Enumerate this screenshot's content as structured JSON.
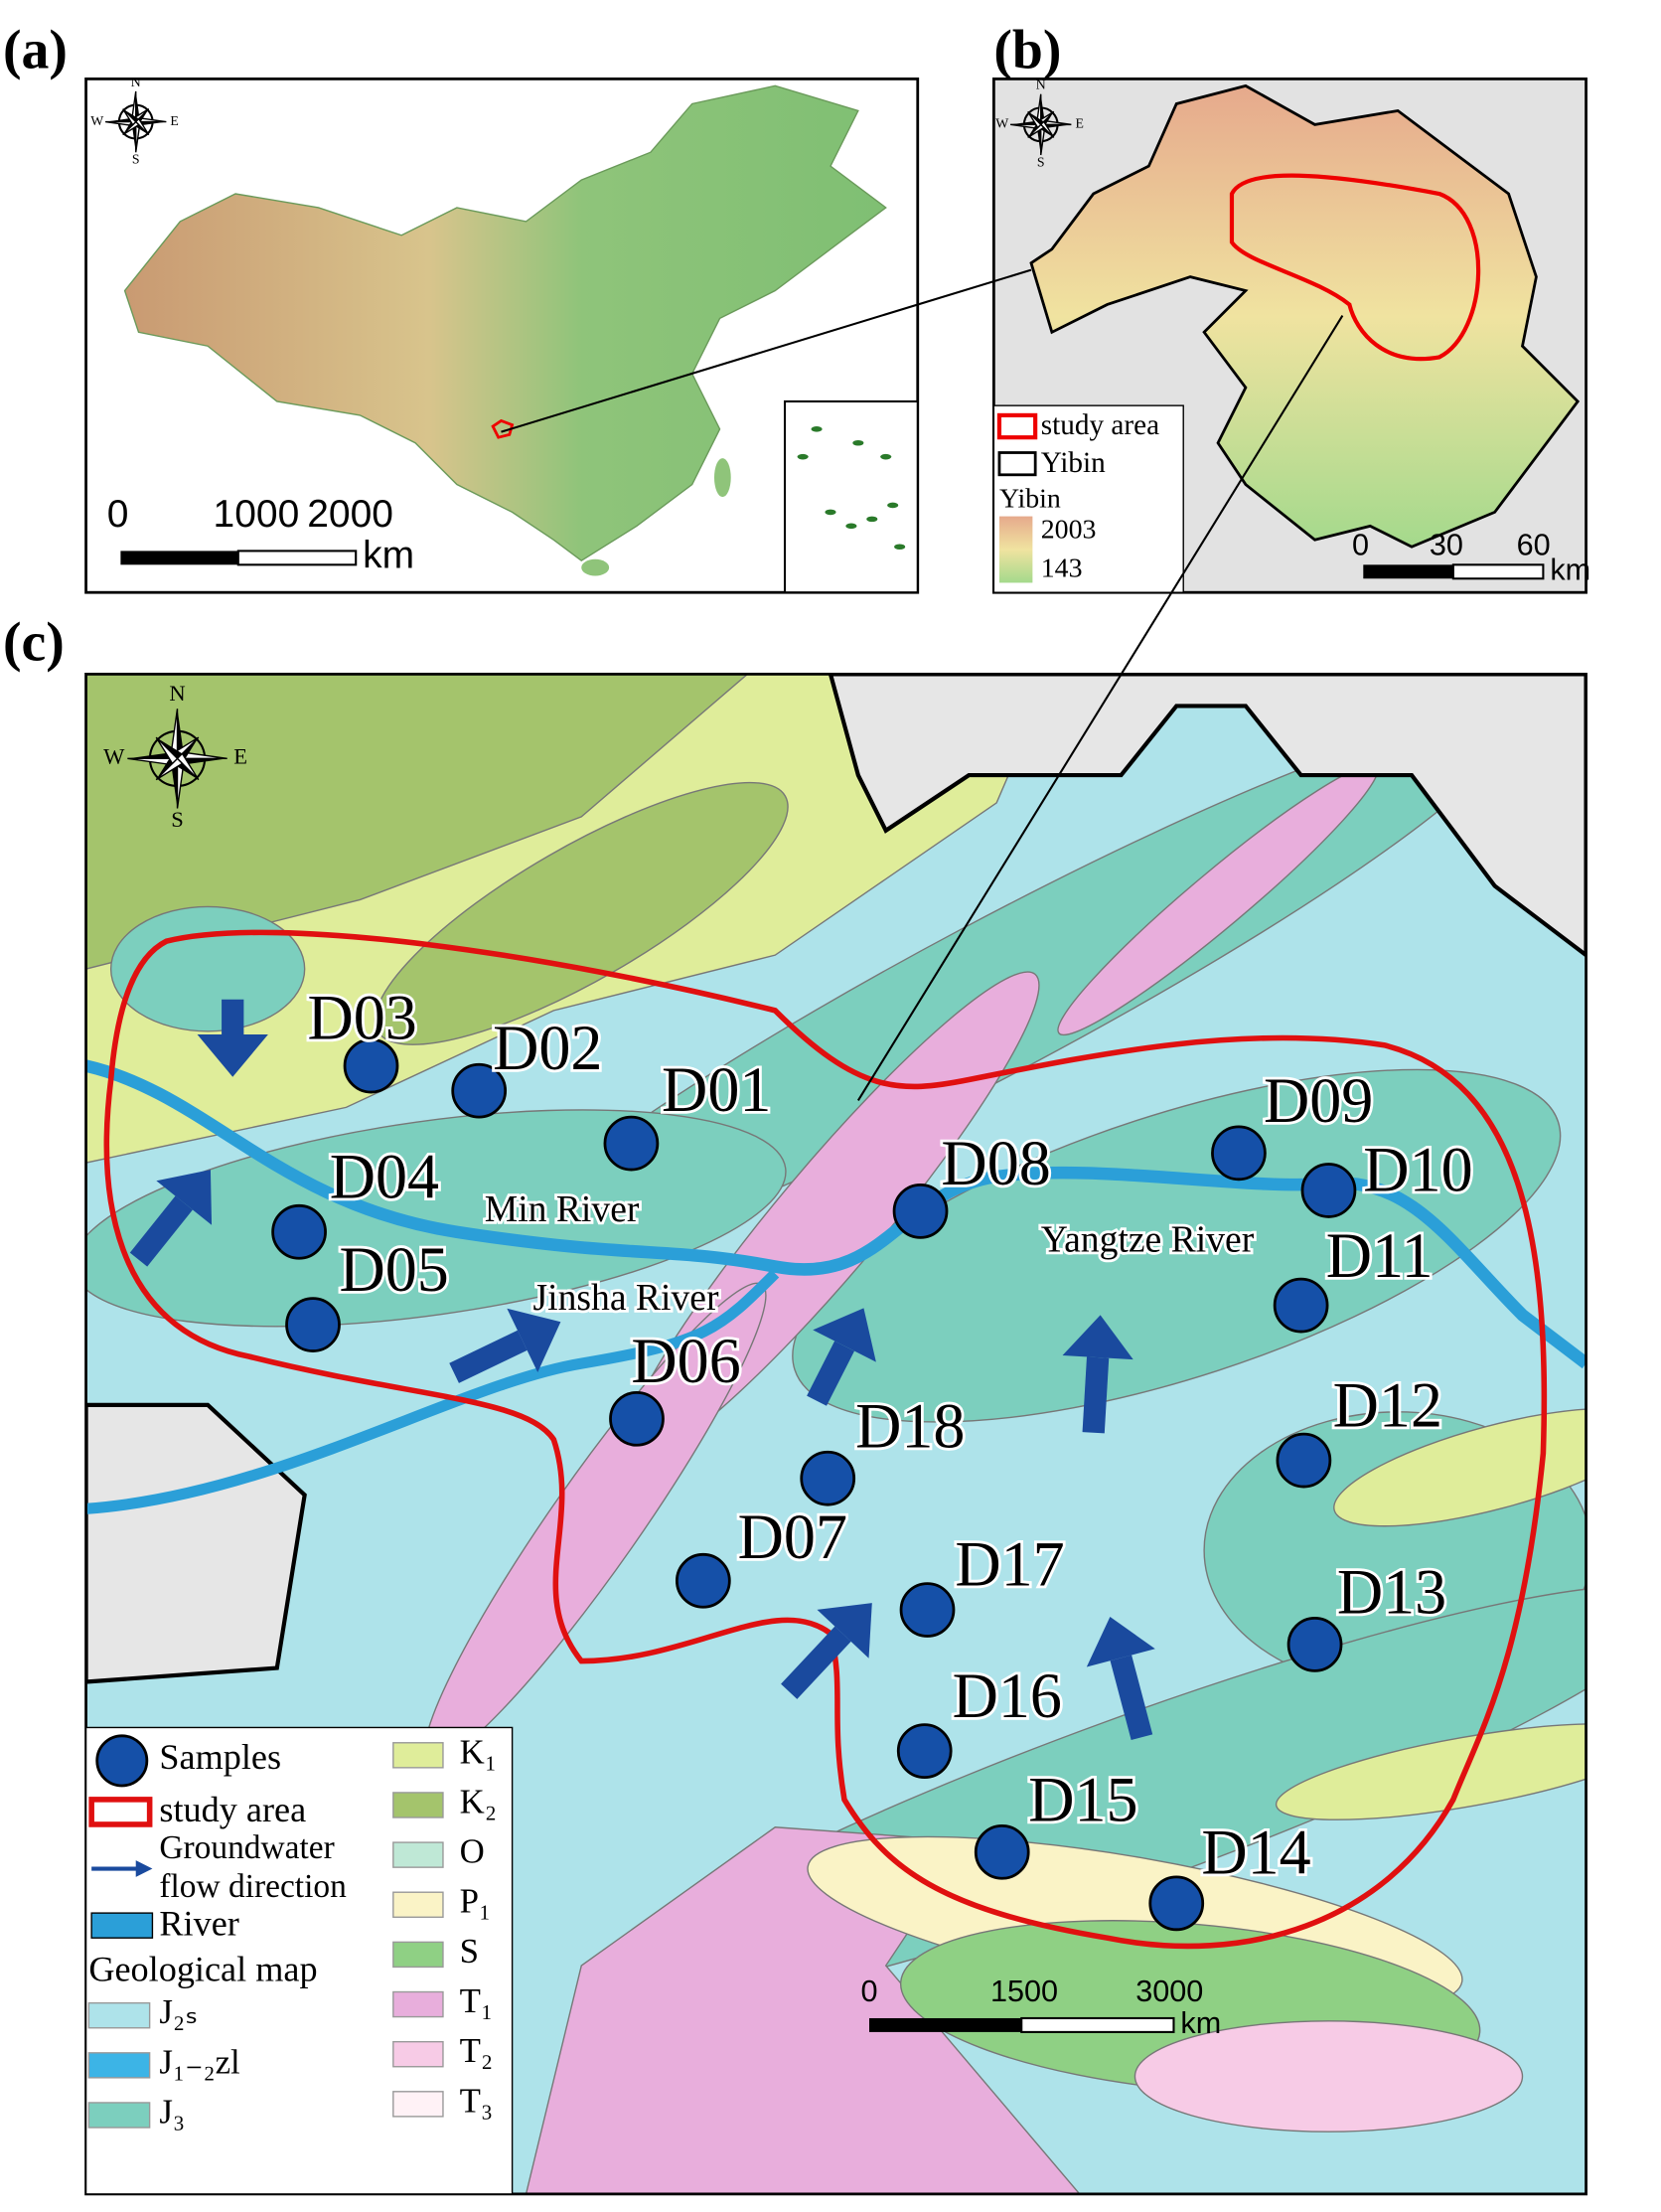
{
  "panel_a": {
    "label": "(a)",
    "compass": [
      "N",
      "E",
      "S",
      "W"
    ],
    "scale_labels": [
      0,
      1000,
      2000
    ],
    "scale_unit": "km"
  },
  "panel_b": {
    "label": "(b)",
    "compass": [
      "N",
      "E",
      "S",
      "W"
    ],
    "legend": [
      "study area",
      "Yibin"
    ],
    "elevation_title": "Yibin",
    "elevation_max": 2003,
    "elevation_min": 143,
    "scale_labels": [
      0,
      30,
      60
    ],
    "scale_unit": "km"
  },
  "panel_c": {
    "label": "(c)",
    "compass": [
      "N",
      "E",
      "S",
      "W"
    ],
    "samples": [
      "D01",
      "D02",
      "D03",
      "D04",
      "D05",
      "D06",
      "D07",
      "D08",
      "D09",
      "D10",
      "D11",
      "D12",
      "D13",
      "D14",
      "D15",
      "D16",
      "D17",
      "D18"
    ],
    "rivers": [
      "Min River",
      "Jinsha River",
      "Yangtze River"
    ],
    "legend": {
      "samples": "Samples",
      "study_area": "study area",
      "flow": [
        "Groundwater",
        "flow direction"
      ],
      "river": "River",
      "geology_title": "Geological map",
      "geology": [
        "J₂ₛ",
        "J₁₋₂zl",
        "J₃",
        "K₁",
        "K₂",
        "O",
        "P₁",
        "S",
        "T₁",
        "T₂",
        "T₃"
      ]
    },
    "scale_labels": [
      0,
      1500,
      3000
    ],
    "scale_unit": "km"
  }
}
